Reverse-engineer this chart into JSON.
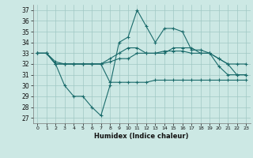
{
  "x": [
    0,
    1,
    2,
    3,
    4,
    5,
    6,
    7,
    8,
    9,
    10,
    11,
    12,
    13,
    14,
    15,
    16,
    17,
    18,
    19,
    20,
    21,
    22,
    23
  ],
  "line1": [
    33,
    33,
    32,
    30,
    29,
    29,
    28,
    27.2,
    30,
    34,
    34.5,
    37,
    35.5,
    34,
    35.3,
    35.3,
    35,
    33.3,
    33.3,
    33,
    31.8,
    31,
    31,
    31
  ],
  "line2": [
    33,
    33,
    32,
    32,
    32,
    32,
    32,
    32,
    32.5,
    33,
    33.5,
    33.5,
    33,
    33,
    33,
    33.5,
    33.5,
    33.5,
    33,
    33,
    32.5,
    32,
    32,
    32
  ],
  "line3": [
    33,
    33,
    32.2,
    32,
    32,
    32,
    32,
    32,
    32.2,
    32.5,
    32.5,
    33,
    33,
    33,
    33.2,
    33.2,
    33.2,
    33,
    33,
    33,
    32.5,
    32,
    31,
    31
  ],
  "line4": [
    33,
    33,
    32,
    32,
    32,
    32,
    32,
    32,
    30.3,
    30.3,
    30.3,
    30.3,
    30.3,
    30.5,
    30.5,
    30.5,
    30.5,
    30.5,
    30.5,
    30.5,
    30.5,
    30.5,
    30.5,
    30.5
  ],
  "bg_color": "#cce8e4",
  "line_color": "#1a6b6b",
  "grid_color": "#a0c8c4",
  "xlabel": "Humidex (Indice chaleur)",
  "yticks": [
    27,
    28,
    29,
    30,
    31,
    32,
    33,
    34,
    35,
    36,
    37
  ],
  "xticks": [
    0,
    1,
    2,
    3,
    4,
    5,
    6,
    7,
    8,
    9,
    10,
    11,
    12,
    13,
    14,
    15,
    16,
    17,
    18,
    19,
    20,
    21,
    22,
    23
  ],
  "ylim": [
    26.5,
    37.5
  ],
  "xlim": [
    -0.5,
    23.5
  ]
}
